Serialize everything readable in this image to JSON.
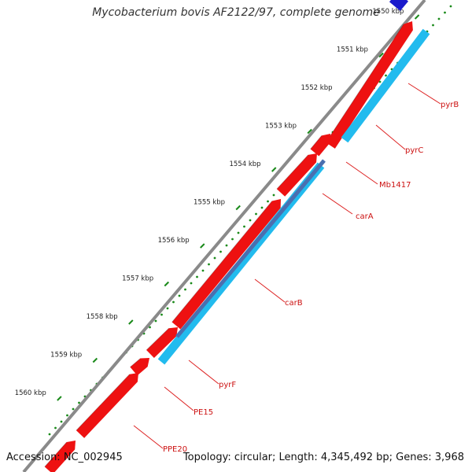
{
  "title": "Mycobacterium bovis AF2122/97, complete genome",
  "footer": {
    "accession": "Accession: NC_002945",
    "summary": "Topology: circular; Length: 4,345,492 bp; Genes: 3,968"
  },
  "ticks": [
    "1550 kbp",
    "1551 kbp",
    "1552 kbp",
    "1553 kbp",
    "1554 kbp",
    "1555 kbp",
    "1556 kbp",
    "1557 kbp",
    "1558 kbp",
    "1559 kbp",
    "1560 kbp"
  ],
  "gene_labels": [
    "pyrB",
    "pyrC",
    "Mb1417",
    "carA",
    "carB",
    "pyrF",
    "PE15",
    "PPE20"
  ],
  "colors": {
    "backbone": "#8a8a8a",
    "forward_gene": "#ee1111",
    "reverse_gene": "#22bbee",
    "highlight_gene": "#4a6fb0",
    "top_gene": "#1a1acc",
    "tick": "#1a8a1a",
    "label_line": "#dd2222",
    "label_text": "#cc1111"
  }
}
